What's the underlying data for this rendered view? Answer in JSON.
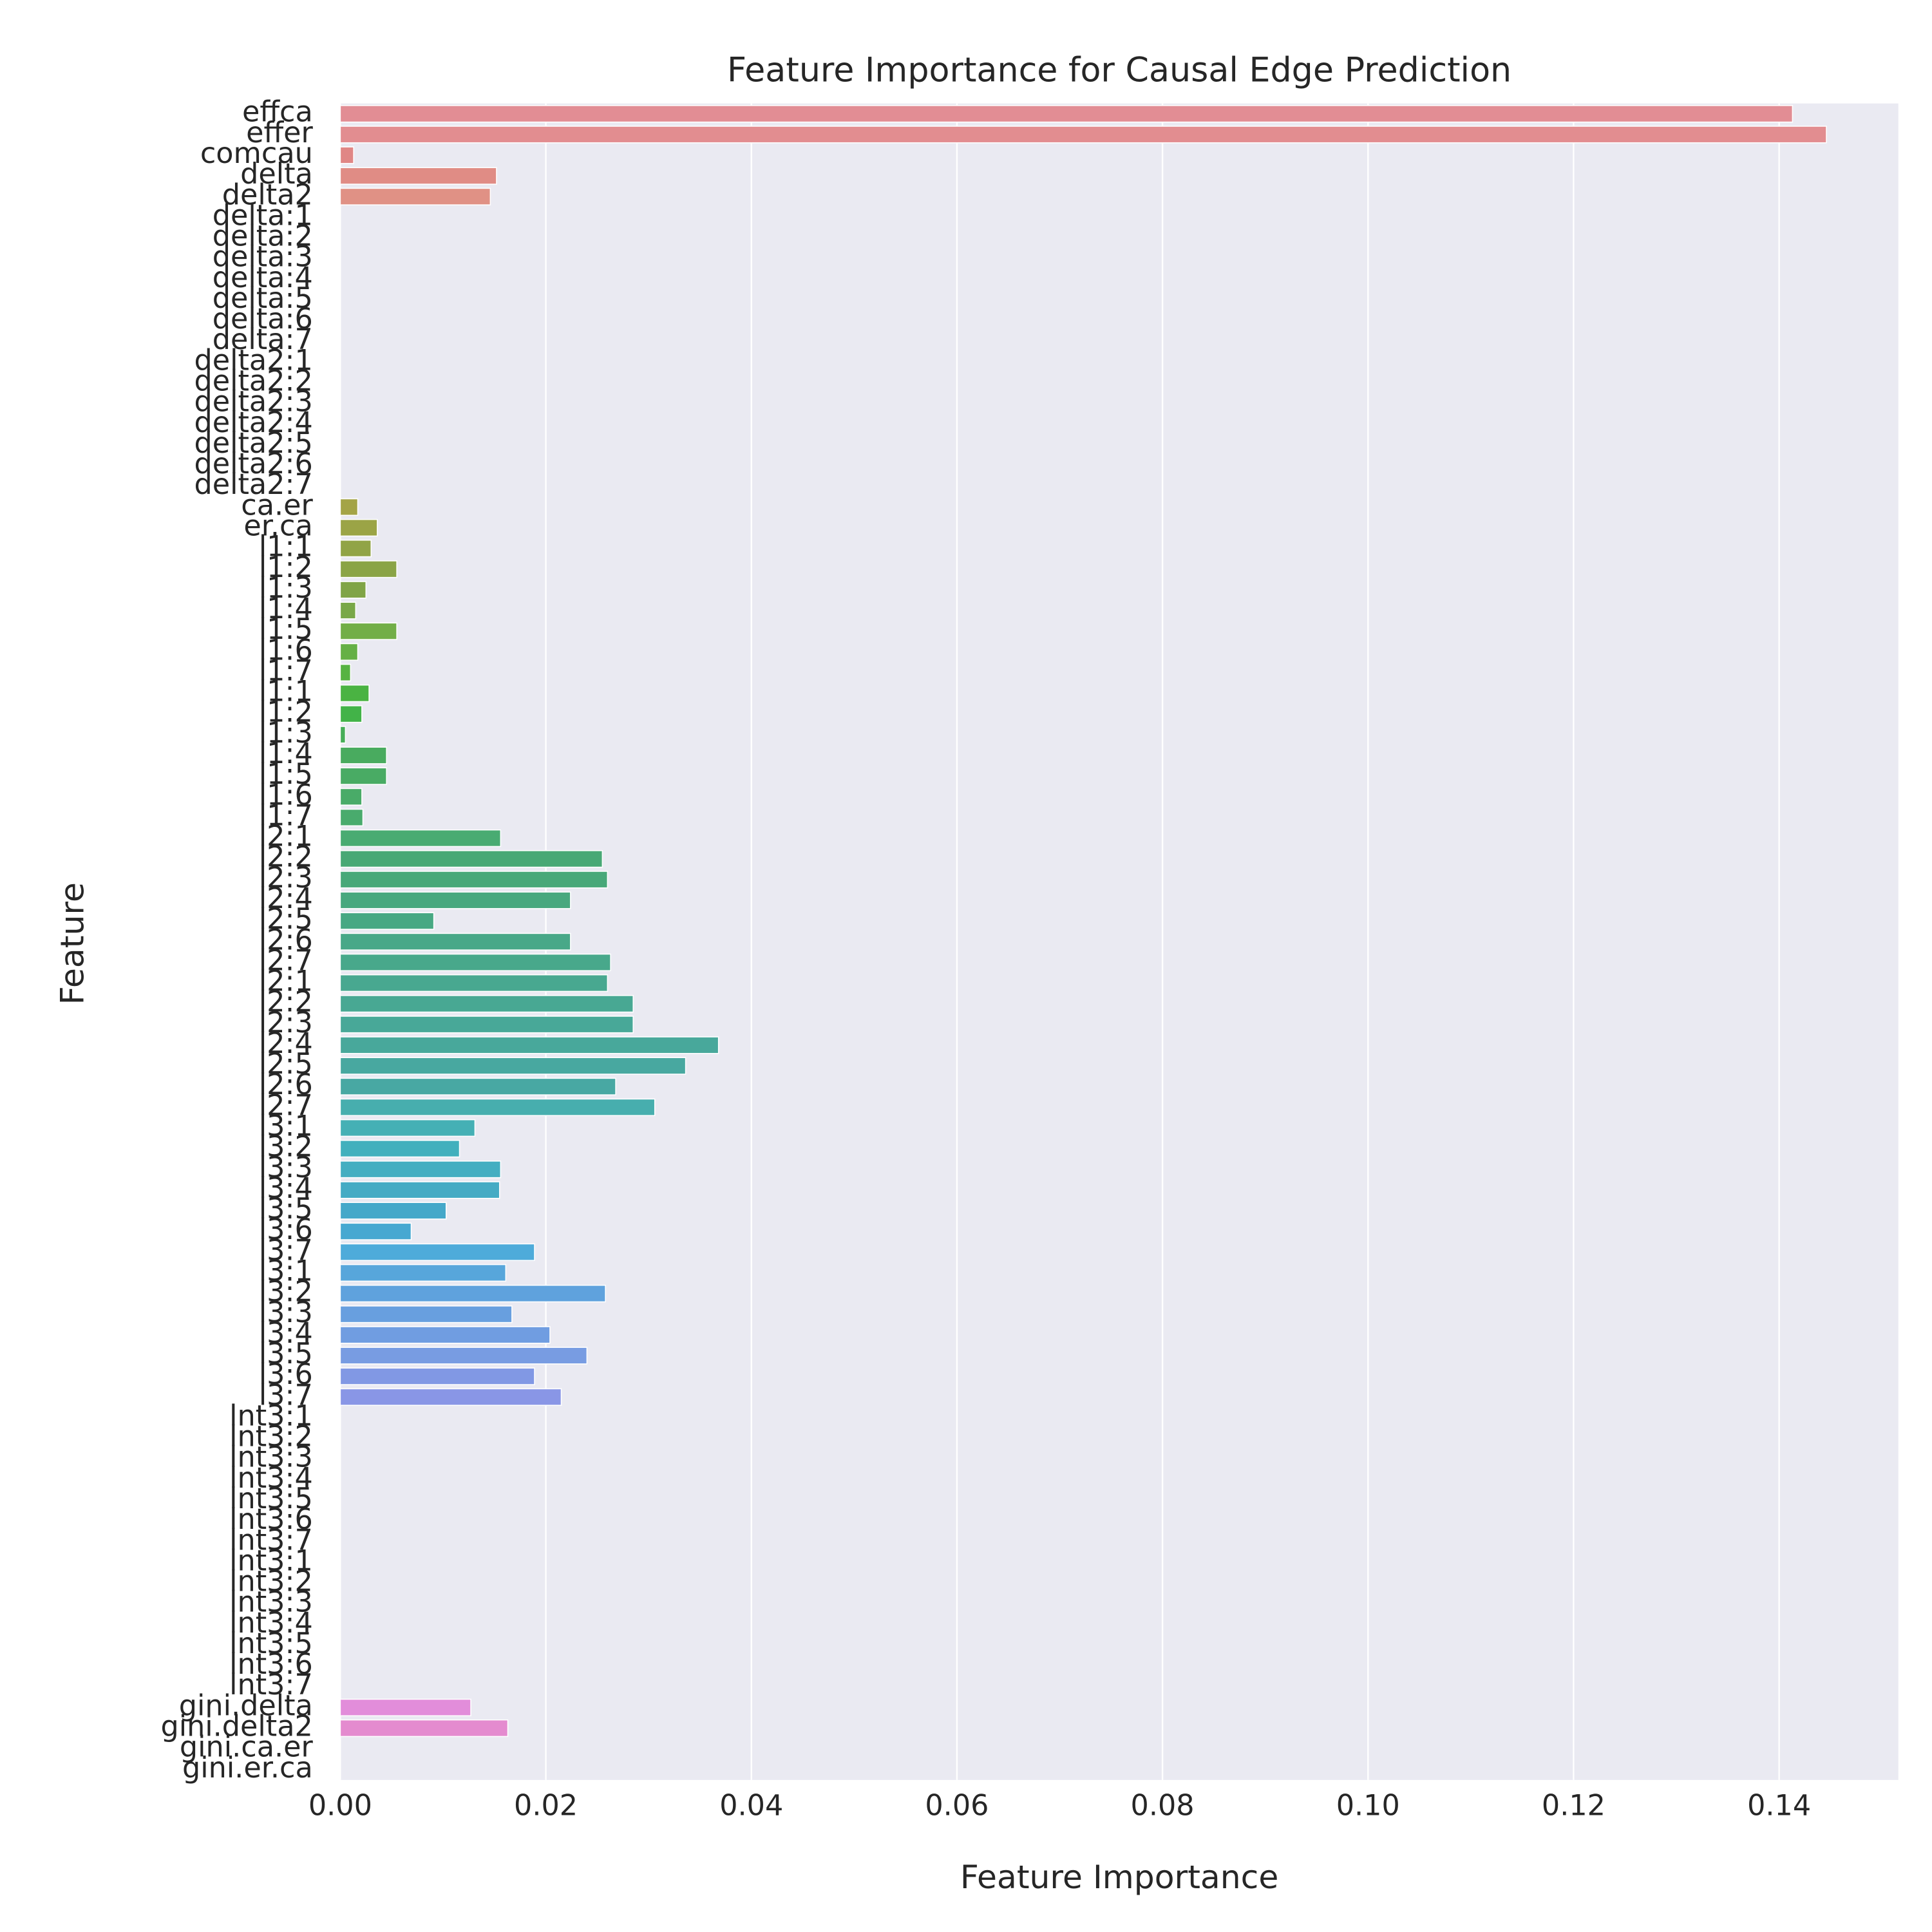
{
  "chart_data": {
    "type": "barh",
    "title": "Feature Importance for Causal Edge Prediction",
    "x_label": "Feature Importance",
    "y_label": "Feature",
    "categories": [
      "effca",
      "effer",
      "comcau",
      "delta",
      "delta2",
      "delta:1",
      "delta:2",
      "delta:3",
      "delta:4",
      "delta:5",
      "delta:6",
      "delta:7",
      "delta2:1",
      "delta2:2",
      "delta2:3",
      "delta2:4",
      "delta2:5",
      "delta2:6",
      "delta2:7",
      "ca.er",
      "er.ca",
      "l1:1",
      "l1:2",
      "l1:3",
      "l1:4",
      "l1:5",
      "l1:6",
      "l1:7",
      "l1:1",
      "l1:2",
      "l1:3",
      "l1:4",
      "l1:5",
      "l1:6",
      "l1:7",
      "l2:1",
      "l2:2",
      "l2:3",
      "l2:4",
      "l2:5",
      "l2:6",
      "l2:7",
      "l2:1",
      "l2:2",
      "l2:3",
      "l2:4",
      "l2:5",
      "l2:6",
      "l2:7",
      "l3:1",
      "l3:2",
      "l3:3",
      "l3:4",
      "l3:5",
      "l3:6",
      "l3:7",
      "l3:1",
      "l3:2",
      "l3:3",
      "l3:4",
      "l3:5",
      "l3:6",
      "l3:7",
      "lnt3:1",
      "lnt3:2",
      "lnt3:3",
      "lnt3:4",
      "lnt3:5",
      "lnt3:6",
      "lnt3:7",
      "lnt3:1",
      "lnt3:2",
      "lnt3:3",
      "lnt3:4",
      "lnt3:5",
      "lnt3:6",
      "lnt3:7",
      "gini.delta",
      "gini.delta2",
      "gini.ca.er",
      "gini.er.ca"
    ],
    "values": [
      0.1413,
      0.1446,
      0.0013,
      0.0152,
      0.0146,
      0,
      0,
      0,
      0,
      0,
      0,
      0,
      0,
      0,
      0,
      0,
      0,
      0,
      0,
      0.0017,
      0.0036,
      0.003,
      0.0055,
      0.0025,
      0.0015,
      0.0055,
      0.0017,
      0.001,
      0.0028,
      0.0021,
      0.0005,
      0.0045,
      0.0045,
      0.0021,
      0.0022,
      0.0156,
      0.0255,
      0.026,
      0.0224,
      0.0091,
      0.0224,
      0.0263,
      0.026,
      0.0285,
      0.0285,
      0.0368,
      0.0336,
      0.0268,
      0.0306,
      0.0131,
      0.0116,
      0.0156,
      0.0155,
      0.0103,
      0.0069,
      0.0189,
      0.0161,
      0.0258,
      0.0167,
      0.0204,
      0.024,
      0.0189,
      0.0215,
      0,
      0,
      0,
      0,
      0,
      0,
      0,
      0,
      0,
      0,
      0,
      0,
      0,
      0,
      0.0127,
      0.0163,
      0,
      0
    ],
    "colors": [
      "hsl(355,60%,72%)",
      "hsl(358,60%,72%)",
      "hsl(1,60%,70%)",
      "hsl(5,60%,70%)",
      "hsl(8,60%,70%)",
      "hsl(12,60%,68%)",
      "hsl(16,60%,66%)",
      "hsl(20,60%,64%)",
      "hsl(24,58%,62%)",
      "hsl(28,55%,60%)",
      "hsl(32,52%,58%)",
      "hsl(36,50%,56%)",
      "hsl(39,48%,54%)",
      "hsl(42,46%,52%)",
      "hsl(45,44%,50%)",
      "hsl(48,44%,50%)",
      "hsl(51,42%,48%)",
      "hsl(54,40%,48%)",
      "hsl(57,40%,47%)",
      "hsl(60,40%,46%)",
      "hsl(66,40%,46%)",
      "hsl(72,40%,46%)",
      "hsl(77,40%,46%)",
      "hsl(83,40%,46%)",
      "hsl(89,40%,47%)",
      "hsl(95,42%,48%)",
      "hsl(102,44%,48%)",
      "hsl(109,46%,48%)",
      "hsl(116,46%,48%)",
      "hsl(123,46%,48%)",
      "hsl(130,42%,48%)",
      "hsl(133,40%,48%)",
      "hsl(136,40%,48%)",
      "hsl(139,40%,48%)",
      "hsl(142,40%,48%)",
      "hsl(145,40%,48%)",
      "hsl(148,40%,47%)",
      "hsl(151,40%,47%)",
      "hsl(154,40%,47%)",
      "hsl(157,40%,47%)",
      "hsl(160,40%,47%)",
      "hsl(162,40%,47%)",
      "hsl(165,40%,47%)",
      "hsl(167,40%,47%)",
      "hsl(170,40%,47%)",
      "hsl(172,40%,47%)",
      "hsl(175,40%,47%)",
      "hsl(177,40%,47%)",
      "hsl(180,42%,48%)",
      "hsl(183,45%,49%)",
      "hsl(186,48%,50%)",
      "hsl(189,50%,51%)",
      "hsl(192,52%,52%)",
      "hsl(195,55%,53%)",
      "hsl(198,60%,55%)",
      "hsl(200,65%,58%)",
      "hsl(204,65%,60%)",
      "hsl(208,65%,62%)",
      "hsl(212,65%,64%)",
      "hsl(216,65%,66%)",
      "hsl(220,65%,68%)",
      "hsl(226,65%,70%)",
      "hsl(232,65%,72%)",
      "hsl(238,62%,74%)",
      "hsl(244,60%,74%)",
      "hsl(250,60%,74%)",
      "hsl(254,60%,74%)",
      "hsl(258,60%,74%)",
      "hsl(262,60%,74%)",
      "hsl(266,60%,74%)",
      "hsl(270,60%,74%)",
      "hsl(274,60%,74%)",
      "hsl(278,60%,74%)",
      "hsl(282,60%,73%)",
      "hsl(286,60%,73%)",
      "hsl(290,60%,72%)",
      "hsl(298,60%,72%)",
      "hsl(306,60%,72%)",
      "hsl(314,62%,72%)",
      "hsl(322,65%,72%)",
      "hsl(330,65%,72%)"
    ],
    "xlim": [
      0,
      0.1516
    ],
    "xticks": [
      {
        "value": 0,
        "label": "0.00"
      },
      {
        "value": 0.02,
        "label": "0.02"
      },
      {
        "value": 0.04,
        "label": "0.04"
      },
      {
        "value": 0.06,
        "label": "0.06"
      },
      {
        "value": 0.08,
        "label": "0.08"
      },
      {
        "value": 0.1,
        "label": "0.10"
      },
      {
        "value": 0.12,
        "label": "0.12"
      },
      {
        "value": 0.14,
        "label": "0.14"
      }
    ],
    "grid": true
  }
}
